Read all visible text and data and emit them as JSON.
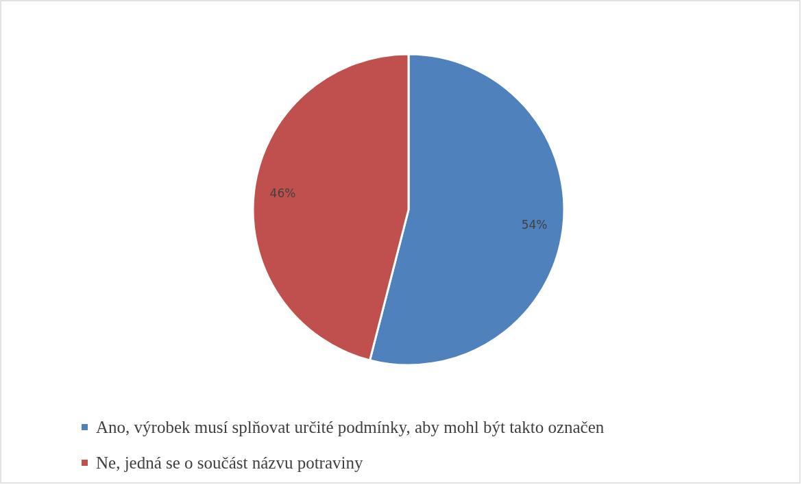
{
  "chart_data": {
    "type": "pie",
    "categories": [
      "Ano, výrobek musí splňovat určité podmínky, aby mohl být takto označen",
      "Ne, jedná se o součást názvu potraviny"
    ],
    "values": [
      54,
      46
    ],
    "colors": [
      "#4f81bd",
      "#c0504d"
    ],
    "value_labels": [
      "54%",
      "46%"
    ],
    "legend": "bottom"
  }
}
